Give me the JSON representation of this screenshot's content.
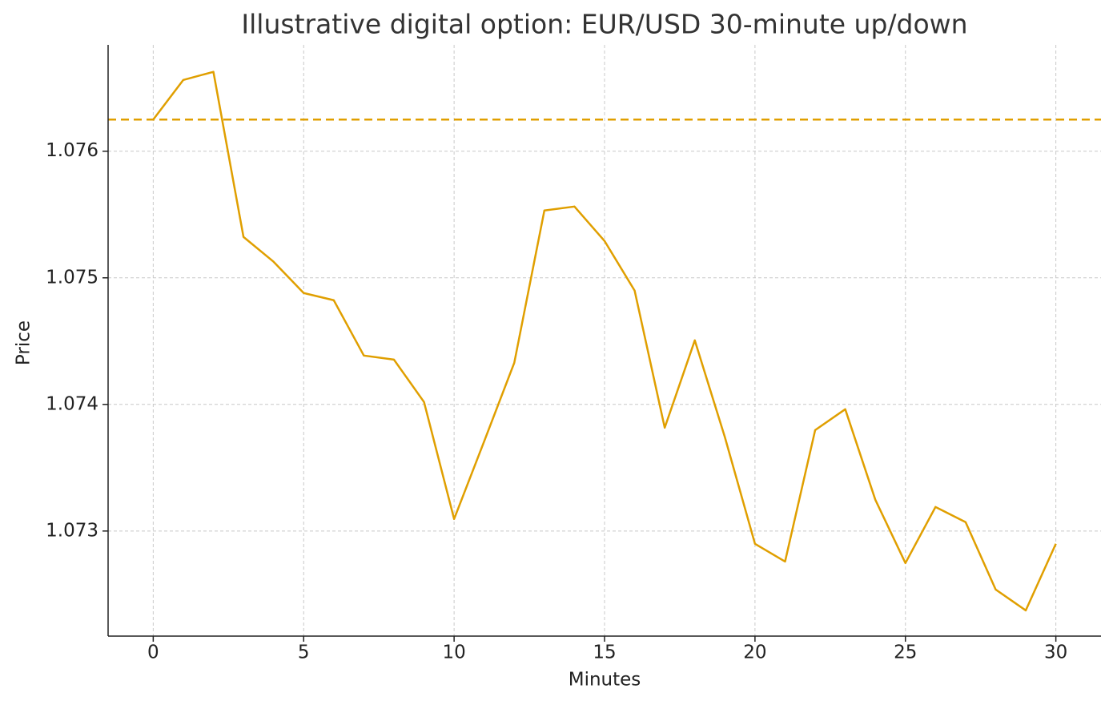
{
  "chart_data": {
    "type": "line",
    "title": "Illustrative digital option: EUR/USD 30-minute up/down",
    "x_label": "Minutes",
    "y_label": "Price",
    "x": [
      0,
      1,
      2,
      3,
      4,
      5,
      6,
      7,
      8,
      9,
      10,
      11,
      12,
      13,
      14,
      15,
      16,
      17,
      18,
      19,
      20,
      21,
      22,
      23,
      24,
      25,
      26,
      27,
      28,
      29,
      30
    ],
    "series": [
      {
        "color": "#e09f00",
        "values": [
          1.07625,
          1.076563,
          1.076627,
          1.075323,
          1.075127,
          1.07488,
          1.074823,
          1.074386,
          1.074354,
          1.074019,
          1.073095,
          1.073709,
          1.074329,
          1.075532,
          1.075563,
          1.075291,
          1.074899,
          1.073816,
          1.074506,
          1.073741,
          1.072899,
          1.072759,
          1.073797,
          1.073962,
          1.073247,
          1.072747,
          1.07319,
          1.07307,
          1.072538,
          1.072373,
          1.072899
        ]
      }
    ],
    "reference_line": {
      "value": 1.07625,
      "color": "#e09f00",
      "style": "dashed"
    },
    "xlim": [
      -1.5,
      31.5
    ],
    "ylim": [
      1.07217,
      1.07684
    ],
    "xticks": [
      0,
      5,
      10,
      15,
      20,
      25,
      30
    ],
    "yticks": [
      1.073,
      1.074,
      1.075,
      1.076
    ],
    "grid": true
  }
}
